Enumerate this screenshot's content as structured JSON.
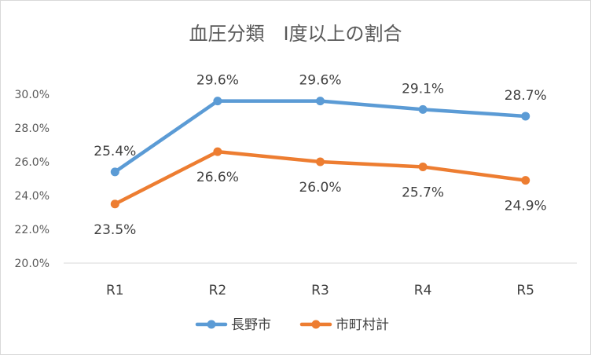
{
  "chart_data": {
    "type": "line",
    "title": "血圧分類　Ⅰ度以上の割合",
    "categories": [
      "R1",
      "R2",
      "R3",
      "R4",
      "R5"
    ],
    "series": [
      {
        "name": "長野市",
        "values": [
          25.4,
          29.6,
          29.6,
          29.1,
          28.7
        ],
        "labels": [
          "25.4%",
          "29.6%",
          "29.6%",
          "29.1%",
          "28.7%"
        ],
        "label_position": "above",
        "color": "#5b9bd5"
      },
      {
        "name": "市町村計",
        "values": [
          23.5,
          26.6,
          26.0,
          25.7,
          24.9
        ],
        "labels": [
          "23.5%",
          "26.6%",
          "26.0%",
          "25.7%",
          "24.9%"
        ],
        "label_position": "below",
        "color": "#ed7d31"
      }
    ],
    "ylim": [
      20,
      30
    ],
    "yticks": [
      20,
      22,
      24,
      26,
      28,
      30
    ],
    "ytick_labels": [
      "20.0%",
      "22.0%",
      "24.0%",
      "26.0%",
      "28.0%",
      "30.0%"
    ],
    "xlabel": "",
    "ylabel": "",
    "grid": false,
    "legend_position": "bottom"
  }
}
